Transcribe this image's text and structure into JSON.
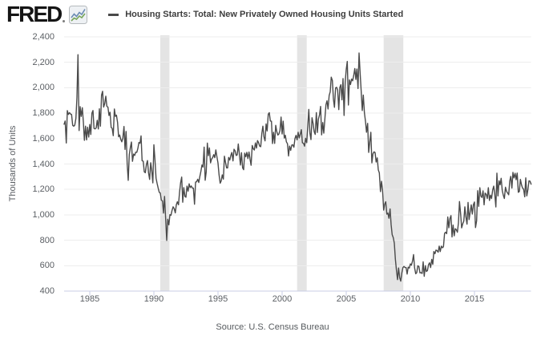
{
  "header": {
    "logo_text": "FRED",
    "series_title": "Housing Starts: Total: New Privately Owned Housing Units Started"
  },
  "footer": {
    "source_text": "Source: U.S. Census Bureau"
  },
  "chart_data": {
    "type": "line",
    "title": "Housing Starts: Total: New Privately Owned Housing Units Started",
    "ylabel": "Thousands of Units",
    "xlabel": "",
    "ylim": [
      400,
      2400
    ],
    "xlim": [
      1983.0,
      2019.42
    ],
    "grid": true,
    "legend_position": "top-left",
    "frequency": "monthly",
    "start": "1983-01",
    "end": "2019-06",
    "yticks": [
      400,
      600,
      800,
      1000,
      1200,
      1400,
      1600,
      1800,
      2000,
      2200,
      2400
    ],
    "ytick_labels": [
      "400",
      "600",
      "800",
      "1,000",
      "1,200",
      "1,400",
      "1,600",
      "1,800",
      "2,000",
      "2,200",
      "2,400"
    ],
    "xticks": [
      1985,
      1990,
      1995,
      2000,
      2005,
      2010,
      2015
    ],
    "xtick_labels": [
      "1985",
      "1990",
      "1995",
      "2000",
      "2005",
      "2010",
      "2015"
    ],
    "colors": {
      "line": "#4a4a4a",
      "recession_band": "#e4e4e4",
      "gridline": "#ededed",
      "axis": "#c8cee6",
      "tick_text": "#5a5e63"
    },
    "recession_bands": [
      [
        1990.5,
        1991.21
      ],
      [
        2001.17,
        2001.92
      ],
      [
        2007.92,
        2009.45
      ]
    ],
    "series": [
      {
        "name": "Housing Starts: Total: New Privately Owned Housing Units Started",
        "monthly_values_by_year": {
          "1983": [
            1713,
            1738,
            1565,
            1820,
            1790,
            1804,
            1793,
            1789,
            1704,
            1697,
            1706,
            1758
          ],
          "1984": [
            1923,
            2260,
            1663,
            1851,
            1774,
            1843,
            1732,
            1586,
            1698,
            1590,
            1689,
            1612
          ],
          "1985": [
            1711,
            1632,
            1800,
            1821,
            1680,
            1676,
            1684,
            1743,
            1676,
            1834,
            1698,
            1942
          ],
          "1986": [
            1972,
            1848,
            1876,
            1933,
            1854,
            1847,
            1782,
            1807,
            1687,
            1681,
            1623,
            1833
          ],
          "1987": [
            1774,
            1784,
            1726,
            1614,
            1628,
            1594,
            1575,
            1605,
            1695,
            1515,
            1656,
            1399
          ],
          "1988": [
            1271,
            1473,
            1532,
            1573,
            1421,
            1478,
            1467,
            1493,
            1492,
            1522,
            1569,
            1563
          ],
          "1989": [
            1621,
            1425,
            1422,
            1339,
            1331,
            1397,
            1427,
            1332,
            1279,
            1410,
            1351,
            1251
          ],
          "1990": [
            1551,
            1437,
            1289,
            1248,
            1212,
            1177,
            1171,
            1115,
            1110,
            1014,
            1145,
            969
          ],
          "1991": [
            798,
            965,
            921,
            1001,
            996,
            1036,
            1063,
            1049,
            1015,
            1079,
            1103,
            1079
          ],
          "1992": [
            1176,
            1250,
            1297,
            1099,
            1214,
            1145,
            1139,
            1226,
            1186,
            1244,
            1214,
            1227
          ],
          "1993": [
            1210,
            1210,
            1083,
            1258,
            1260,
            1280,
            1254,
            1300,
            1343,
            1392,
            1376,
            1533
          ],
          "1994": [
            1272,
            1337,
            1564,
            1465,
            1526,
            1409,
            1439,
            1450,
            1474,
            1450,
            1511,
            1455
          ],
          "1995": [
            1407,
            1316,
            1249,
            1267,
            1314,
            1281,
            1461,
            1416,
            1369,
            1369,
            1452,
            1431
          ],
          "1996": [
            1467,
            1491,
            1424,
            1516,
            1504,
            1467,
            1472,
            1557,
            1475,
            1392,
            1489,
            1370
          ],
          "1997": [
            1355,
            1486,
            1457,
            1492,
            1442,
            1494,
            1437,
            1390,
            1546,
            1520,
            1510,
            1566
          ],
          "1998": [
            1525,
            1584,
            1567,
            1540,
            1536,
            1641,
            1698,
            1614,
            1582,
            1715,
            1660,
            1792
          ],
          "1999": [
            1804,
            1738,
            1737,
            1561,
            1649,
            1562,
            1704,
            1657,
            1628,
            1636,
            1663,
            1769
          ],
          "2000": [
            1636,
            1737,
            1604,
            1626,
            1575,
            1559,
            1463,
            1541,
            1507,
            1549,
            1551,
            1532
          ],
          "2001": [
            1600,
            1625,
            1590,
            1649,
            1605,
            1636,
            1670,
            1567,
            1562,
            1540,
            1602,
            1568
          ],
          "2002": [
            1698,
            1829,
            1642,
            1592,
            1764,
            1717,
            1655,
            1633,
            1804,
            1648,
            1753,
            1788
          ],
          "2003": [
            1853,
            1629,
            1726,
            1643,
            1751,
            1867,
            1897,
            1833,
            1939,
            1967,
            2083,
            2057
          ],
          "2004": [
            1911,
            1846,
            1998,
            2003,
            1981,
            1828,
            2002,
            2024,
            1905,
            2072,
            1782,
            2042
          ],
          "2005": [
            2144,
            2207,
            1864,
            2061,
            2025,
            2068,
            2054,
            2095,
            2151,
            2065,
            2147,
            1994
          ],
          "2006": [
            2273,
            2119,
            1969,
            1821,
            1942,
            1802,
            1737,
            1650,
            1720,
            1491,
            1570,
            1649
          ],
          "2007": [
            1409,
            1480,
            1495,
            1490,
            1415,
            1448,
            1354,
            1330,
            1183,
            1264,
            1197,
            1037
          ],
          "2008": [
            1084,
            1103,
            1005,
            1013,
            973,
            1046,
            923,
            844,
            820,
            777,
            652,
            560
          ],
          "2009": [
            490,
            582,
            505,
            478,
            540,
            585,
            594,
            586,
            585,
            534,
            588,
            581
          ],
          "2010": [
            614,
            604,
            636,
            687,
            583,
            536,
            546,
            599,
            594,
            543,
            545,
            539
          ],
          "2011": [
            630,
            517,
            600,
            554,
            561,
            608,
            623,
            585,
            650,
            610,
            711,
            694
          ],
          "2012": [
            723,
            718,
            706,
            754,
            711,
            754,
            741,
            749,
            854,
            863,
            852,
            983
          ],
          "2013": [
            898,
            969,
            994,
            826,
            919,
            835,
            891,
            883,
            863,
            936,
            1105,
            1010
          ],
          "2014": [
            897,
            928,
            950,
            1063,
            984,
            927,
            1098,
            963,
            1026,
            1079,
            1006,
            1081
          ],
          "2015": [
            1101,
            900,
            954,
            1190,
            1067,
            1213,
            1147,
            1137,
            1189,
            1079,
            1171,
            1160
          ],
          "2016": [
            1128,
            1213,
            1113,
            1155,
            1128,
            1195,
            1226,
            1164,
            1062,
            1328,
            1149,
            1268
          ],
          "2017": [
            1236,
            1288,
            1189,
            1154,
            1129,
            1217,
            1185,
            1172,
            1158,
            1265,
            1303,
            1210
          ],
          "2018": [
            1334,
            1290,
            1327,
            1276,
            1329,
            1177,
            1184,
            1279,
            1236,
            1211,
            1202,
            1142
          ],
          "2019": [
            1291,
            1149,
            1199,
            1267,
            1265,
            1241
          ]
        }
      }
    ]
  }
}
